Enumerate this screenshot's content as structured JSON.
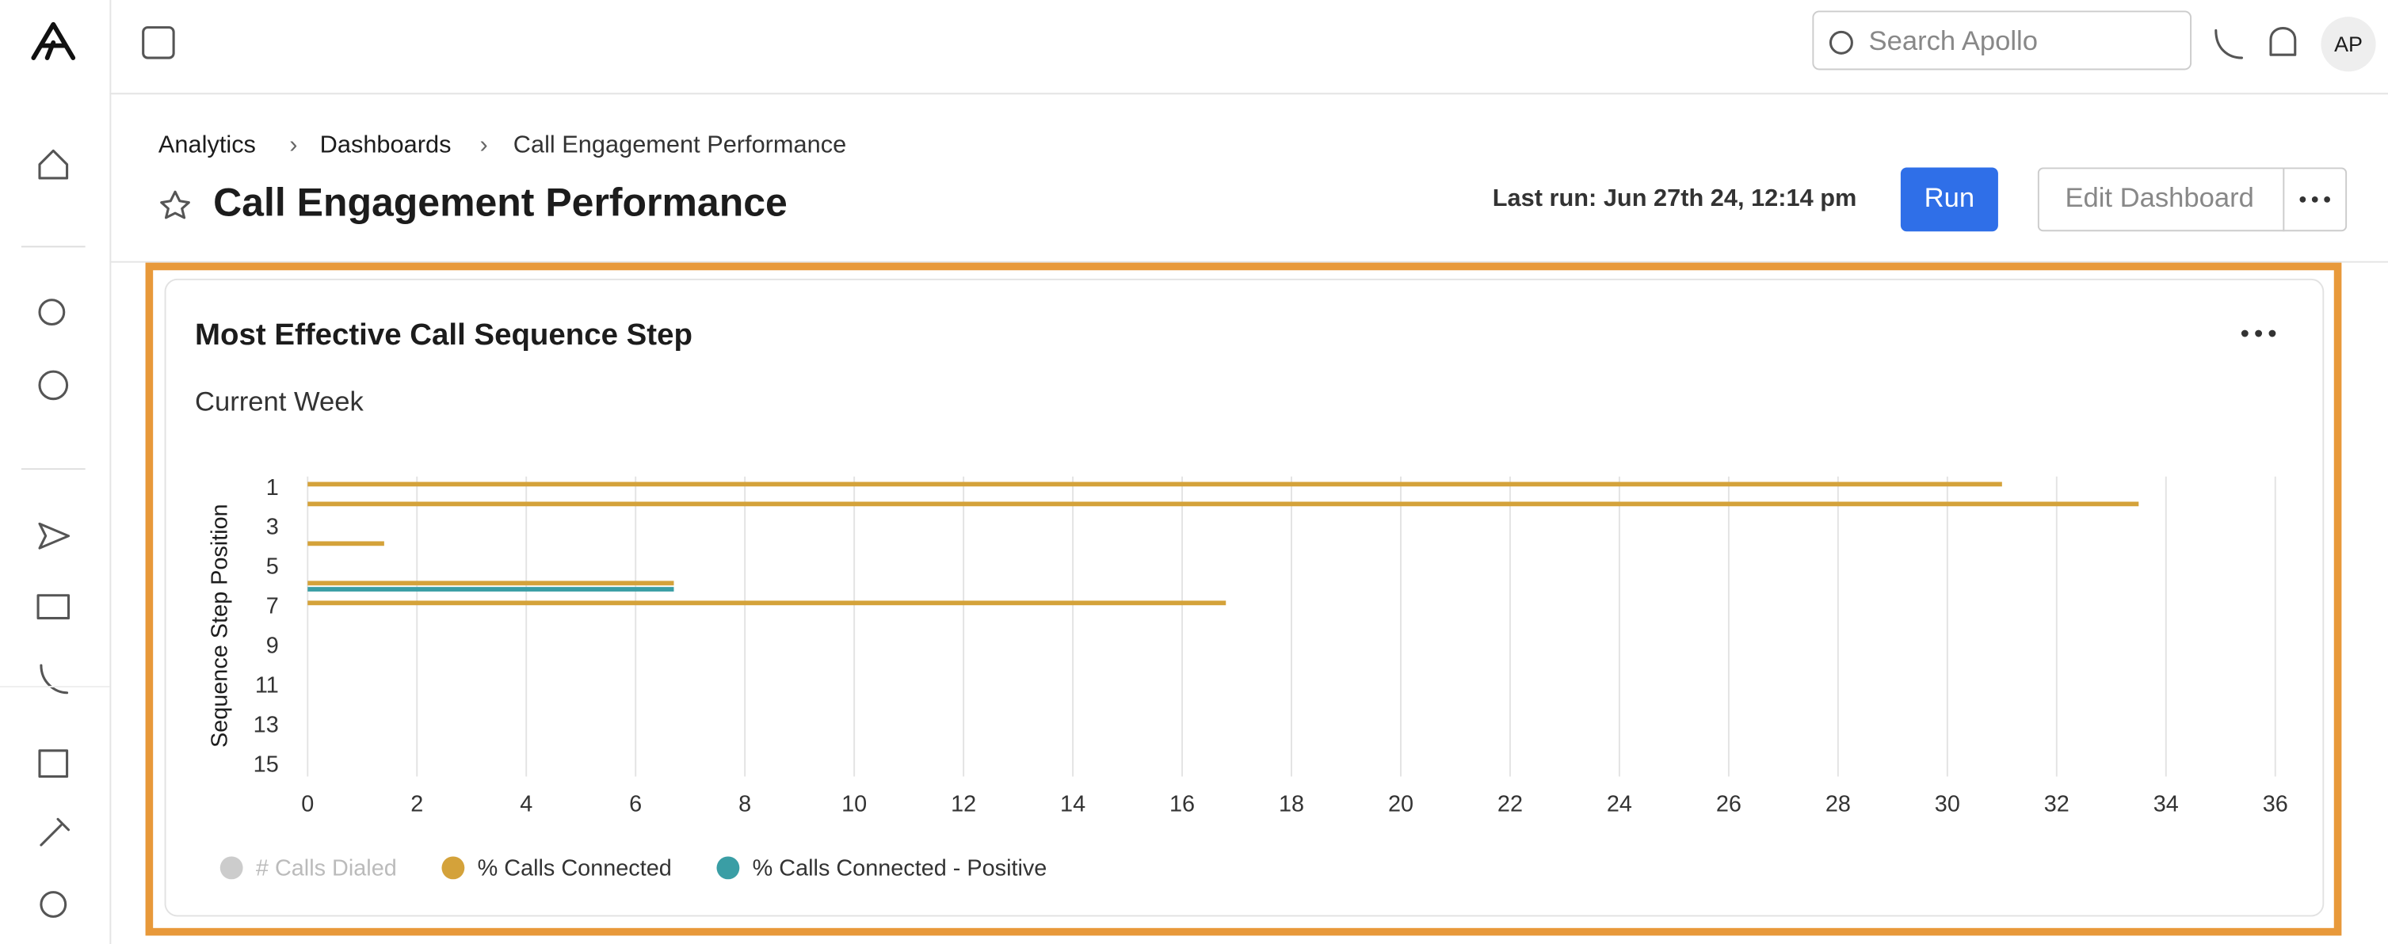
{
  "topbar": {
    "search_placeholder": "Search Apollo",
    "avatar": "AP"
  },
  "breadcrumbs": [
    "Analytics",
    "Dashboards",
    "Call Engagement Performance"
  ],
  "page_title": "Call Engagement Performance",
  "last_run": "Last run: Jun 27th 24, 12:14 pm",
  "buttons": {
    "run": "Run",
    "edit": "Edit Dashboard"
  },
  "chart_data": {
    "type": "hbar",
    "title": "Most Effective Call Sequence Step",
    "subtitle": "Current Week",
    "y_label": "Sequence Step Position",
    "categories": [
      "1",
      null,
      "3",
      null,
      "5",
      null,
      "7",
      null,
      "9",
      null,
      "11",
      null,
      "13",
      null,
      "15"
    ],
    "series": [
      {
        "name": "# Calls Dialed",
        "color": "#cccccc",
        "hidden": true,
        "values": [
          null,
          null,
          null,
          null,
          null,
          null,
          null,
          null,
          null,
          null,
          null,
          null,
          null,
          null,
          null
        ]
      },
      {
        "name": "% Calls Connected",
        "color": "#d4a23a",
        "values": [
          31,
          33.5,
          null,
          1.4,
          null,
          6.7,
          16.8,
          null,
          null,
          null,
          null,
          null,
          null,
          null,
          null
        ]
      },
      {
        "name": "% Calls Connected - Positive",
        "color": "#3a9ea5",
        "values": [
          null,
          null,
          null,
          null,
          null,
          6.7,
          null,
          null,
          null,
          null,
          null,
          null,
          null,
          null,
          null
        ]
      }
    ],
    "xlim": [
      0,
      36
    ],
    "xticks": [
      0,
      2,
      4,
      6,
      8,
      10,
      12,
      14,
      16,
      18,
      20,
      22,
      24,
      26,
      28,
      30,
      32,
      34,
      36
    ],
    "grid": true
  }
}
